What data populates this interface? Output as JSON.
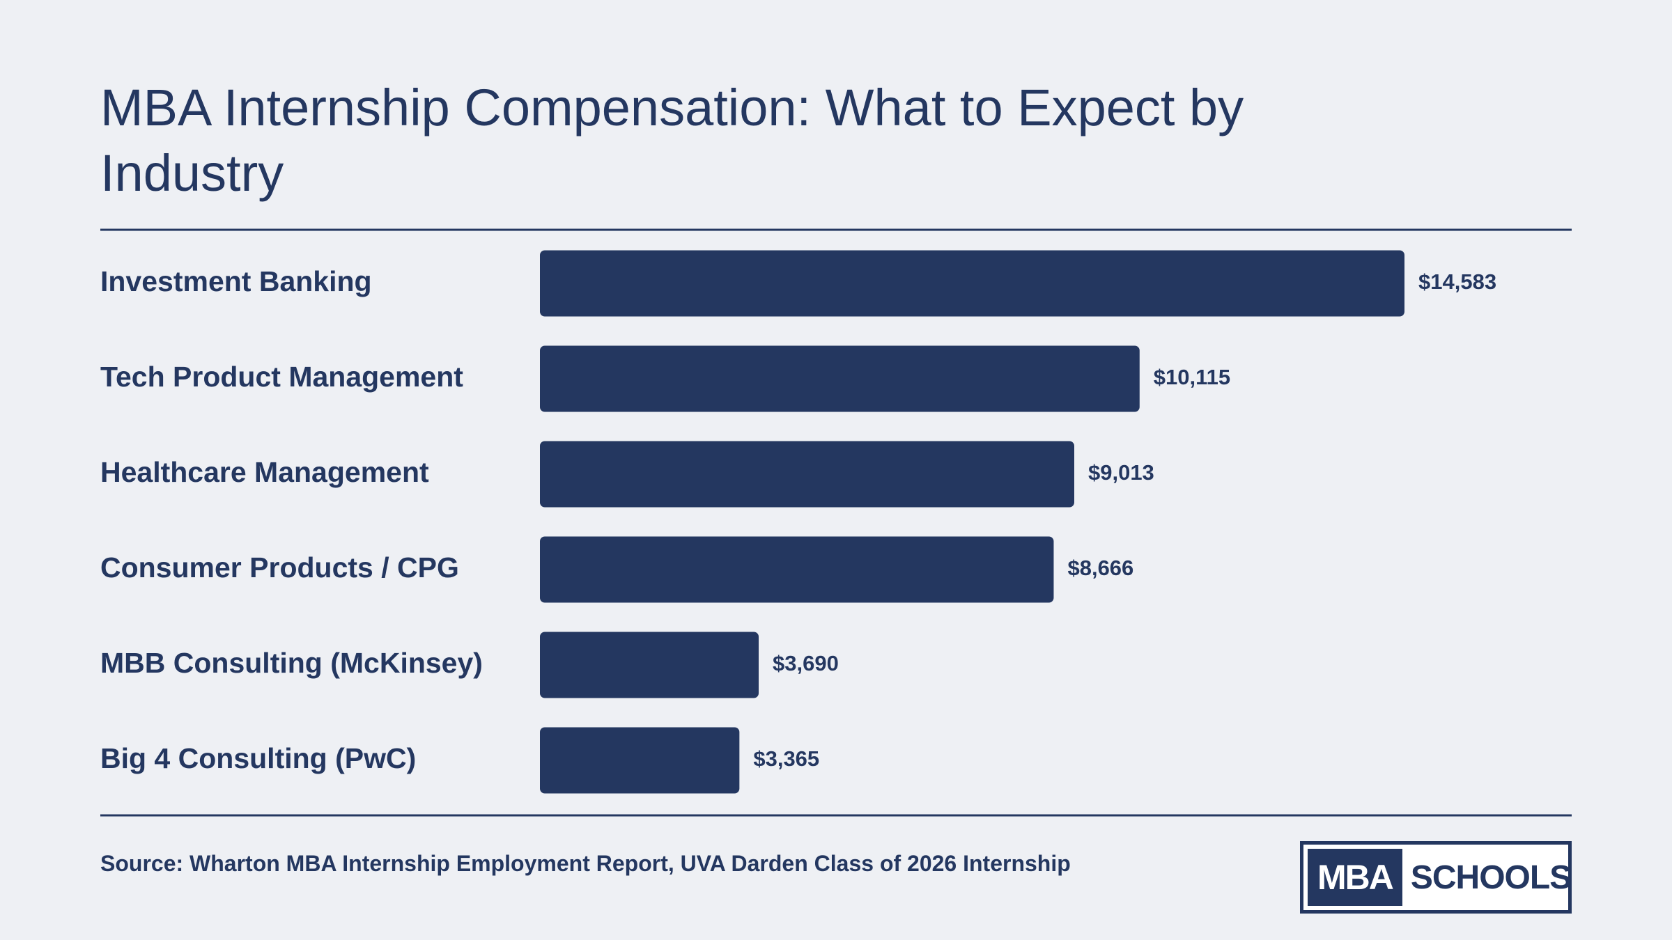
{
  "chart_data": {
    "type": "barh",
    "title": "MBA Internship Compensation: What to Expect by Industry",
    "categories": [
      "Investment Banking",
      "Tech Product Management",
      "Healthcare Management",
      "Consumer Products / CPG",
      "MBB Consulting (McKinsey)",
      "Big 4 Consulting (PwC)"
    ],
    "values": [
      14583,
      10115,
      9013,
      8666,
      3690,
      3365
    ],
    "value_labels": [
      "$14,583",
      "$10,115",
      "$9,013",
      "$8,666",
      "$3,690",
      "$3,365"
    ],
    "color": "#243760",
    "source": "Source: Wharton MBA Internship Employment Report, UVA Darden Class of 2026 Internship"
  },
  "logo": {
    "left": "MBA",
    "right": "SCHOOLS"
  }
}
